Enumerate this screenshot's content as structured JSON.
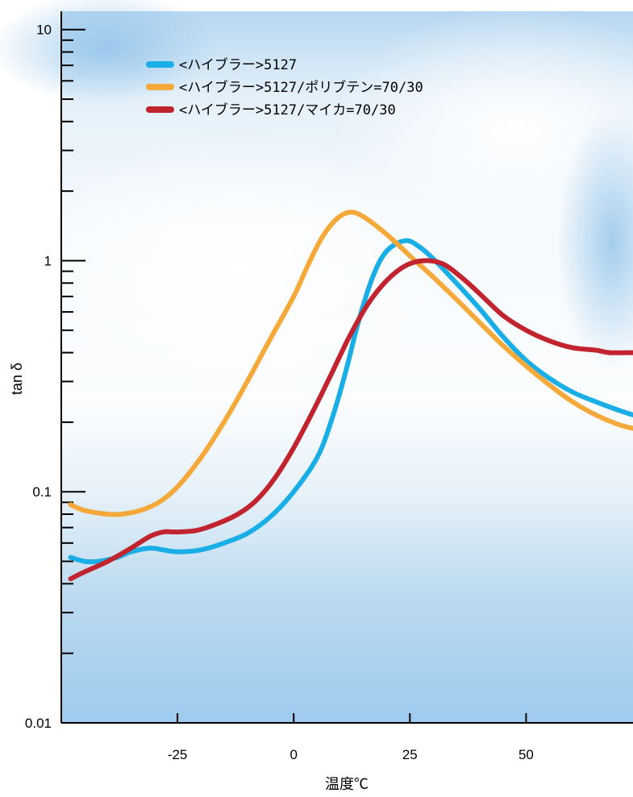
{
  "chart_data": {
    "type": "line",
    "title": "",
    "xlabel": "温度℃",
    "ylabel": "tan δ",
    "xlim": [
      -50,
      73
    ],
    "ylim": [
      0.01,
      12
    ],
    "yscale": "log",
    "x_ticks": [
      -25,
      0,
      25,
      50
    ],
    "x_tick_labels": [
      "-25",
      "0",
      "25",
      "50"
    ],
    "y_ticks": [
      0.01,
      0.1,
      1,
      10
    ],
    "y_tick_labels": [
      "0.01",
      "0.1",
      "1",
      "10"
    ],
    "grid": false,
    "legend": "top-left",
    "background": "sky gradient",
    "series": [
      {
        "name": "<ハイブラー>5127",
        "color": "#1aaee6",
        "points": [
          [
            -48,
            0.052
          ],
          [
            -45,
            0.05
          ],
          [
            -42,
            0.05
          ],
          [
            -38,
            0.052
          ],
          [
            -35,
            0.055
          ],
          [
            -31,
            0.057
          ],
          [
            -28,
            0.056
          ],
          [
            -25,
            0.055
          ],
          [
            -20,
            0.056
          ],
          [
            -15,
            0.06
          ],
          [
            -10,
            0.066
          ],
          [
            -5,
            0.078
          ],
          [
            0,
            0.1
          ],
          [
            5,
            0.14
          ],
          [
            8,
            0.2
          ],
          [
            11,
            0.32
          ],
          [
            14,
            0.55
          ],
          [
            17,
            0.85
          ],
          [
            20,
            1.1
          ],
          [
            24,
            1.22
          ],
          [
            27,
            1.15
          ],
          [
            30,
            1.02
          ],
          [
            35,
            0.8
          ],
          [
            40,
            0.62
          ],
          [
            45,
            0.47
          ],
          [
            50,
            0.37
          ],
          [
            55,
            0.31
          ],
          [
            60,
            0.27
          ],
          [
            65,
            0.245
          ],
          [
            70,
            0.225
          ],
          [
            73,
            0.215
          ]
        ]
      },
      {
        "name": "<ハイブラー>5127/ポリブテン=70/30",
        "color": "#f5a93a",
        "points": [
          [
            -48,
            0.088
          ],
          [
            -45,
            0.083
          ],
          [
            -40,
            0.08
          ],
          [
            -37,
            0.08
          ],
          [
            -33,
            0.083
          ],
          [
            -29,
            0.09
          ],
          [
            -25,
            0.105
          ],
          [
            -20,
            0.14
          ],
          [
            -15,
            0.2
          ],
          [
            -10,
            0.3
          ],
          [
            -5,
            0.46
          ],
          [
            0,
            0.7
          ],
          [
            3,
            0.95
          ],
          [
            6,
            1.25
          ],
          [
            9,
            1.5
          ],
          [
            12,
            1.62
          ],
          [
            15,
            1.55
          ],
          [
            20,
            1.3
          ],
          [
            25,
            1.05
          ],
          [
            30,
            0.85
          ],
          [
            35,
            0.68
          ],
          [
            40,
            0.54
          ],
          [
            45,
            0.43
          ],
          [
            50,
            0.35
          ],
          [
            55,
            0.29
          ],
          [
            60,
            0.245
          ],
          [
            65,
            0.215
          ],
          [
            70,
            0.195
          ],
          [
            73,
            0.188
          ]
        ]
      },
      {
        "name": "<ハイブラー>5127/マイカ=70/30",
        "color": "#c1242f",
        "points": [
          [
            -48,
            0.042
          ],
          [
            -45,
            0.045
          ],
          [
            -40,
            0.05
          ],
          [
            -35,
            0.057
          ],
          [
            -31,
            0.064
          ],
          [
            -28,
            0.067
          ],
          [
            -25,
            0.067
          ],
          [
            -21,
            0.068
          ],
          [
            -17,
            0.072
          ],
          [
            -12,
            0.08
          ],
          [
            -8,
            0.092
          ],
          [
            -4,
            0.115
          ],
          [
            0,
            0.155
          ],
          [
            4,
            0.22
          ],
          [
            8,
            0.32
          ],
          [
            12,
            0.47
          ],
          [
            16,
            0.65
          ],
          [
            20,
            0.82
          ],
          [
            24,
            0.95
          ],
          [
            28,
            1.0
          ],
          [
            32,
            0.97
          ],
          [
            36,
            0.85
          ],
          [
            40,
            0.72
          ],
          [
            45,
            0.58
          ],
          [
            50,
            0.5
          ],
          [
            55,
            0.45
          ],
          [
            60,
            0.42
          ],
          [
            65,
            0.41
          ],
          [
            68,
            0.4
          ],
          [
            73,
            0.4
          ]
        ]
      }
    ]
  }
}
